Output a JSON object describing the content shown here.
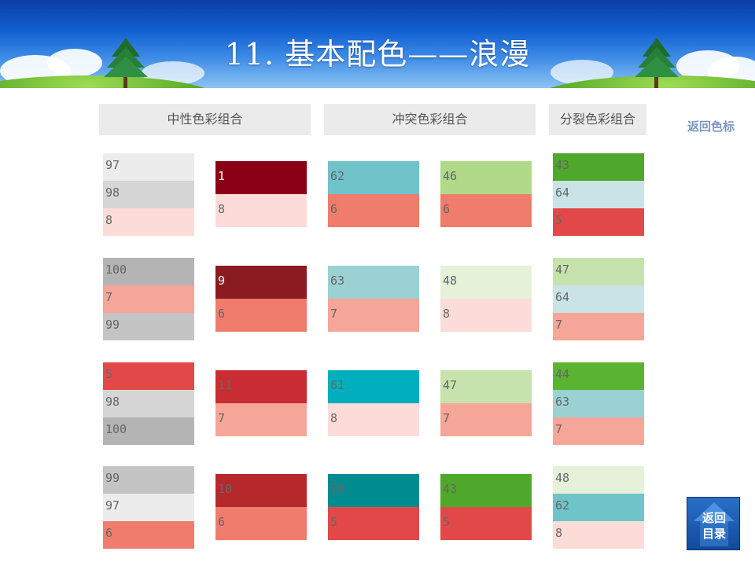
{
  "title": "11. 基本配色——浪漫",
  "columns": {
    "neutral": "中性色彩组合",
    "conflict": "冲突色彩组合",
    "split": "分裂色彩组合"
  },
  "back_link": "返回色标",
  "nav_button": {
    "line1": "返回",
    "line2": "目录"
  },
  "palettes": [
    {
      "label": "97",
      "color": "#ececec",
      "text": "#666666"
    },
    {
      "label": "98",
      "color": "#d6d6d6",
      "text": "#666666"
    },
    {
      "label": "8",
      "color": "#fcdcd8",
      "text": "#666666"
    },
    {
      "label": "1",
      "color": "#8b0016",
      "text": "#ffffff"
    },
    {
      "label": "8",
      "color": "#fcdcd8",
      "text": "#666666"
    },
    {
      "label": "62",
      "color": "#6fc3c9",
      "text": "#666666"
    },
    {
      "label": "6",
      "color": "#ef7c6c",
      "text": "#666666"
    },
    {
      "label": "46",
      "color": "#b0d98a",
      "text": "#666666"
    },
    {
      "label": "6",
      "color": "#ef7c6c",
      "text": "#666666"
    },
    {
      "label": "43",
      "color": "#4fa82b",
      "text": "#666666"
    },
    {
      "label": "64",
      "color": "#c9e3e6",
      "text": "#666666"
    },
    {
      "label": "5",
      "color": "#e34848",
      "text": "#666666"
    },
    {
      "label": "100",
      "color": "#b4b4b4",
      "text": "#666666"
    },
    {
      "label": "7",
      "color": "#f5a698",
      "text": "#666666"
    },
    {
      "label": "99",
      "color": "#c4c4c4",
      "text": "#666666"
    },
    {
      "label": "9",
      "color": "#8a1c21",
      "text": "#ffffff"
    },
    {
      "label": "6",
      "color": "#ef7c6c",
      "text": "#666666"
    },
    {
      "label": "63",
      "color": "#9bd1d3",
      "text": "#666666"
    },
    {
      "label": "7",
      "color": "#f5a698",
      "text": "#666666"
    },
    {
      "label": "48",
      "color": "#e6f1da",
      "text": "#666666"
    },
    {
      "label": "8",
      "color": "#fcdcd8",
      "text": "#666666"
    },
    {
      "label": "47",
      "color": "#c7e3ad",
      "text": "#666666"
    },
    {
      "label": "64",
      "color": "#c9e3e6",
      "text": "#666666"
    },
    {
      "label": "7",
      "color": "#f5a698",
      "text": "#666666"
    },
    {
      "label": "5",
      "color": "#e34848",
      "text": "#666666"
    },
    {
      "label": "98",
      "color": "#d6d6d6",
      "text": "#666666"
    },
    {
      "label": "100",
      "color": "#b4b4b4",
      "text": "#666666"
    },
    {
      "label": "11",
      "color": "#c92d33",
      "text": "#666666"
    },
    {
      "label": "7",
      "color": "#f5a698",
      "text": "#666666"
    },
    {
      "label": "61",
      "color": "#00aebd",
      "text": "#666666"
    },
    {
      "label": "8",
      "color": "#fcdcd8",
      "text": "#666666"
    },
    {
      "label": "47",
      "color": "#c7e3ad",
      "text": "#666666"
    },
    {
      "label": "7",
      "color": "#f5a698",
      "text": "#666666"
    },
    {
      "label": "44",
      "color": "#5ab431",
      "text": "#666666"
    },
    {
      "label": "63",
      "color": "#9bd1d3",
      "text": "#666666"
    },
    {
      "label": "7",
      "color": "#f5a698",
      "text": "#666666"
    },
    {
      "label": "99",
      "color": "#c4c4c4",
      "text": "#666666"
    },
    {
      "label": "97",
      "color": "#ececec",
      "text": "#666666"
    },
    {
      "label": "6",
      "color": "#ef7c6c",
      "text": "#666666"
    },
    {
      "label": "10",
      "color": "#b5292d",
      "text": "#666666"
    },
    {
      "label": "6",
      "color": "#ef7c6c",
      "text": "#666666"
    },
    {
      "label": "59",
      "color": "#008b8f",
      "text": "#666666"
    },
    {
      "label": "5",
      "color": "#e34848",
      "text": "#666666"
    },
    {
      "label": "43",
      "color": "#4fa82b",
      "text": "#666666"
    },
    {
      "label": "5",
      "color": "#e34848",
      "text": "#666666"
    },
    {
      "label": "48",
      "color": "#e6f1da",
      "text": "#666666"
    },
    {
      "label": "62",
      "color": "#6fc3c9",
      "text": "#666666"
    },
    {
      "label": "8",
      "color": "#fcdcd8",
      "text": "#666666"
    }
  ]
}
